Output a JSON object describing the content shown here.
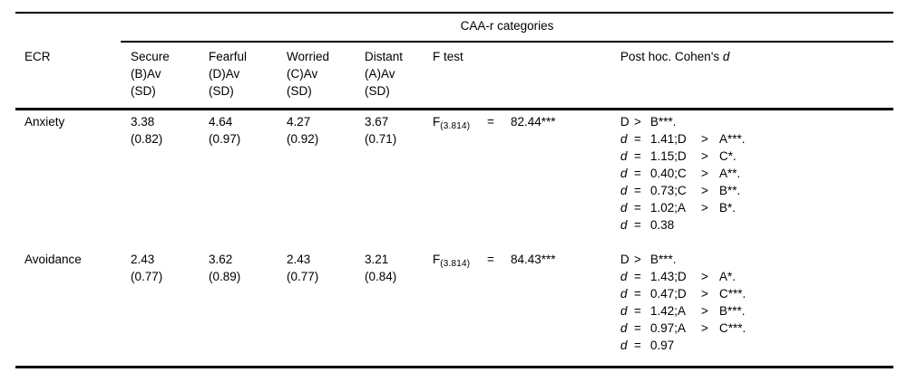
{
  "table": {
    "spanner": "CAA-r categories",
    "columns": {
      "ecr": "ECR",
      "groups": [
        {
          "lines": [
            "Secure",
            "(B)Av",
            "(SD)"
          ]
        },
        {
          "lines": [
            "Fearful",
            "(D)Av",
            "(SD)"
          ]
        },
        {
          "lines": [
            "Worried",
            "(C)Av",
            "(SD)"
          ]
        },
        {
          "lines": [
            "Distant",
            "(A)Av",
            "(SD)"
          ]
        }
      ],
      "f_test": "F test",
      "post_hoc": "Post hoc. Cohen's ",
      "post_hoc_d": "d"
    },
    "rows": [
      {
        "label": "Anxiety",
        "cells": [
          {
            "mean": "3.38",
            "sd": "(0.82)"
          },
          {
            "mean": "4.64",
            "sd": "(0.97)"
          },
          {
            "mean": "4.27",
            "sd": "(0.92)"
          },
          {
            "mean": "3.67",
            "sd": "(0.71)"
          }
        ],
        "f": {
          "stat": "F",
          "df": "(3.814)",
          "eq": "=",
          "value": "82.44***"
        },
        "post_hoc": [
          {
            "lhs": "D",
            "op": ">",
            "val": "B***.",
            "op2": "",
            "rhs": ""
          },
          {
            "lhs": "d",
            "op": "=",
            "val": "1.41;D",
            "op2": ">",
            "rhs": "A***."
          },
          {
            "lhs": "d",
            "op": "=",
            "val": "1.15;D",
            "op2": ">",
            "rhs": "C*."
          },
          {
            "lhs": "d",
            "op": "=",
            "val": "0.40;C",
            "op2": ">",
            "rhs": "A**."
          },
          {
            "lhs": "d",
            "op": "=",
            "val": "0.73;C",
            "op2": ">",
            "rhs": "B**."
          },
          {
            "lhs": "d",
            "op": "=",
            "val": "1.02;A",
            "op2": ">",
            "rhs": "B*."
          },
          {
            "lhs": "d",
            "op": "=",
            "val": "0.38",
            "op2": "",
            "rhs": ""
          }
        ]
      },
      {
        "label": "Avoidance",
        "cells": [
          {
            "mean": "2.43",
            "sd": "(0.77)"
          },
          {
            "mean": "3.62",
            "sd": "(0.89)"
          },
          {
            "mean": "2.43",
            "sd": "(0.77)"
          },
          {
            "mean": "3.21",
            "sd": "(0.84)"
          }
        ],
        "f": {
          "stat": "F",
          "df": "(3.814)",
          "eq": "=",
          "value": "84.43***"
        },
        "post_hoc": [
          {
            "lhs": "D",
            "op": ">",
            "val": "B***.",
            "op2": "",
            "rhs": ""
          },
          {
            "lhs": "d",
            "op": "=",
            "val": "1.43;D",
            "op2": ">",
            "rhs": "A*."
          },
          {
            "lhs": "d",
            "op": "=",
            "val": "0.47;D",
            "op2": ">",
            "rhs": "C***."
          },
          {
            "lhs": "d",
            "op": "=",
            "val": "1.42;A",
            "op2": ">",
            "rhs": "B***."
          },
          {
            "lhs": "d",
            "op": "=",
            "val": "0.97;A",
            "op2": ">",
            "rhs": "C***."
          },
          {
            "lhs": "d",
            "op": "=",
            "val": "0.97",
            "op2": "",
            "rhs": ""
          }
        ]
      }
    ]
  }
}
